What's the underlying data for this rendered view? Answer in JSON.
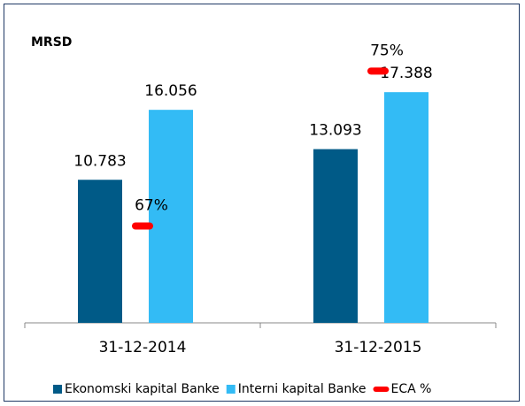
{
  "chart_data": {
    "type": "bar",
    "title": "MRSD",
    "categories": [
      "31-12-2014",
      "31-12-2015"
    ],
    "series": [
      {
        "name": "Ekonomski kapital Banke",
        "color": "#005a87",
        "values": [
          10.783,
          13.093
        ]
      },
      {
        "name": "Interni kapital Banke",
        "color": "#33bbf5",
        "values": [
          16.056,
          17.388
        ]
      },
      {
        "name": "ECA %",
        "color": "#ff0000",
        "type": "line",
        "axis": "y2",
        "values": [
          67,
          75
        ],
        "value_labels": [
          "67%",
          "75%"
        ]
      }
    ],
    "ylim": [
      0,
      20
    ],
    "y2lim": [
      62,
      75.7
    ],
    "legend": "bottom"
  }
}
